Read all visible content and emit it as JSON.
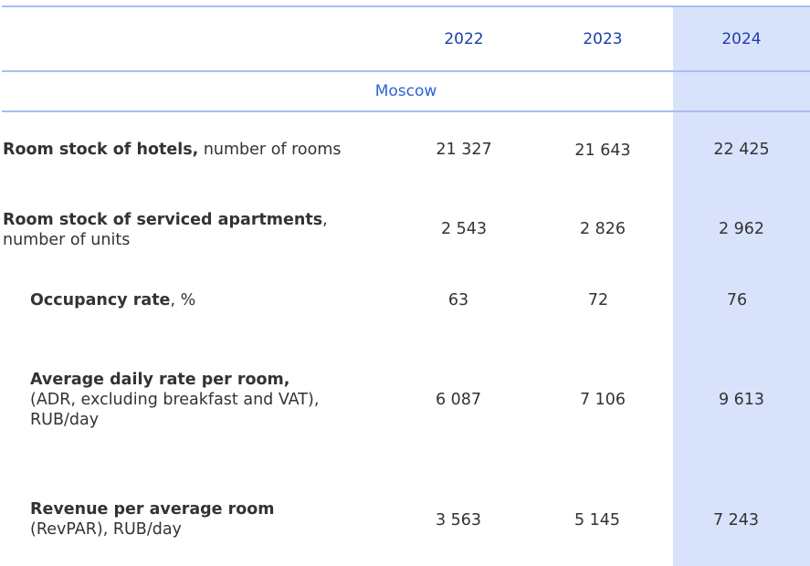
{
  "header": {
    "years": [
      "2022",
      "2023",
      "2024"
    ]
  },
  "region": "Moscow",
  "rows": [
    {
      "label_bold": "Room stock of hotels,",
      "label_rest": " number of rooms",
      "values": [
        "21 327",
        "21 643",
        "22 425"
      ]
    },
    {
      "label_bold": "Room stock of serviced apartments",
      "label_rest": ", number of units",
      "values": [
        "2 543",
        "2 826",
        "2 962"
      ]
    },
    {
      "label_bold": "Occupancy rate",
      "label_rest": ", %",
      "values": [
        "63",
        "72",
        "76"
      ]
    },
    {
      "label_bold": "Average daily rate per room,",
      "label_rest": "(ADR, excluding breakfast and VAT), RUB/day",
      "values": [
        "6 087",
        "7 106",
        "9 613"
      ]
    },
    {
      "label_bold": "Revenue per average room",
      "label_rest": "(RevPAR), RUB/day",
      "values": [
        "3 563",
        "5 145",
        "7 243"
      ]
    }
  ],
  "colors": {
    "highlight_column": "#d9e2fb",
    "rule": "#a9bdf0",
    "year_text": "#1b3fa8",
    "region_text": "#2e62d8"
  }
}
